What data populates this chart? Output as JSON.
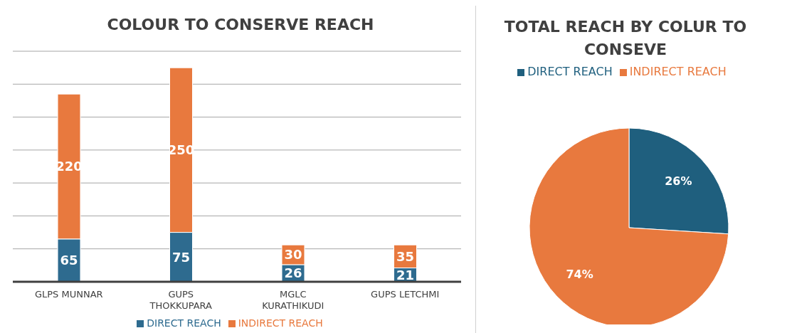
{
  "chart_data": [
    {
      "type": "bar",
      "title": "COLOUR TO CONSERVE REACH",
      "categories": [
        "GLPS MUNNAR",
        "GUPS THOKKUPARA",
        "MGLC KURATHIKUDI",
        "GUPS LETCHMI"
      ],
      "stacked": true,
      "series": [
        {
          "name": "DIRECT REACH",
          "color": "#2e6b8f",
          "values": [
            65,
            75,
            26,
            21
          ]
        },
        {
          "name": "INDIRECT REACH",
          "color": "#e8793e",
          "values": [
            220,
            250,
            30,
            35
          ]
        }
      ],
      "tick_labels": "x",
      "grid": "y",
      "legend": "bottom",
      "data_labels": true
    },
    {
      "type": "pie",
      "title": "TOTAL REACH BY COLUR TO CONSEVE",
      "categories": [
        "DIRECT REACH",
        "INDIRECT REACH"
      ],
      "values": [
        26,
        74
      ],
      "value_labels": [
        "26%",
        "74%"
      ],
      "colors": [
        "#1f5f7e",
        "#e8793e"
      ],
      "legend": "top",
      "data_labels": true
    }
  ]
}
